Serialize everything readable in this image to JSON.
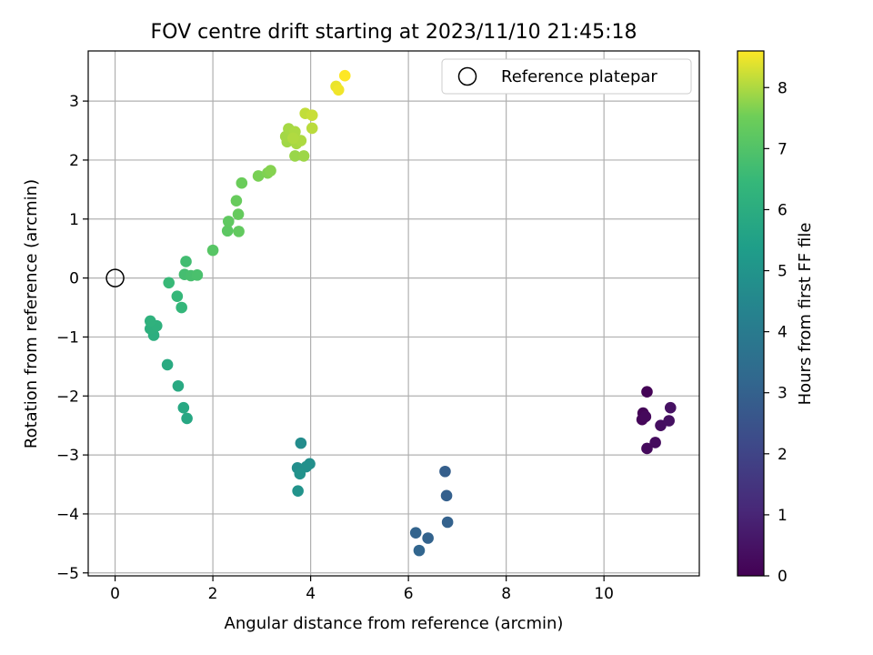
{
  "chart_data": {
    "type": "scatter",
    "title": "FOV centre drift starting at 2023/11/10 21:45:18",
    "xlabel": "Angular distance from reference (arcmin)",
    "ylabel": "Rotation from reference (arcmin)",
    "xlim": [
      -0.55,
      11.95
    ],
    "ylim": [
      -5.05,
      3.85
    ],
    "xticks": [
      0,
      2,
      4,
      6,
      8,
      10
    ],
    "yticks": [
      -5,
      -4,
      -3,
      -2,
      -1,
      0,
      1,
      2,
      3
    ],
    "grid": true,
    "legend": {
      "position": "top-right",
      "entries": [
        {
          "label": "Reference platepar",
          "marker": "open-circle"
        }
      ]
    },
    "reference_point": {
      "x": 0,
      "y": 0
    },
    "colorbar": {
      "label": "Hours from first FF file",
      "colormap": "viridis",
      "range": [
        0,
        8.6
      ],
      "ticks": [
        0,
        1,
        2,
        3,
        4,
        5,
        6,
        7,
        8
      ]
    },
    "points": [
      {
        "x": 10.88,
        "y": -1.93,
        "hours": 0.05
      },
      {
        "x": 10.8,
        "y": -2.29,
        "hours": 0.1
      },
      {
        "x": 10.78,
        "y": -2.4,
        "hours": 0.15
      },
      {
        "x": 10.85,
        "y": -2.35,
        "hours": 0.2
      },
      {
        "x": 10.88,
        "y": -2.89,
        "hours": 0.25
      },
      {
        "x": 11.05,
        "y": -2.79,
        "hours": 0.3
      },
      {
        "x": 11.16,
        "y": -2.5,
        "hours": 0.35
      },
      {
        "x": 11.33,
        "y": -2.42,
        "hours": 0.4
      },
      {
        "x": 11.36,
        "y": -2.2,
        "hours": 0.45
      },
      {
        "x": 6.75,
        "y": -3.28,
        "hours": 2.9
      },
      {
        "x": 6.78,
        "y": -3.69,
        "hours": 2.95
      },
      {
        "x": 6.8,
        "y": -4.14,
        "hours": 3.0
      },
      {
        "x": 6.4,
        "y": -4.41,
        "hours": 3.05
      },
      {
        "x": 6.15,
        "y": -4.32,
        "hours": 3.1
      },
      {
        "x": 6.22,
        "y": -4.62,
        "hours": 3.15
      },
      {
        "x": 3.8,
        "y": -2.8,
        "hours": 4.7
      },
      {
        "x": 3.73,
        "y": -3.22,
        "hours": 4.75
      },
      {
        "x": 3.98,
        "y": -3.15,
        "hours": 4.8
      },
      {
        "x": 3.91,
        "y": -3.2,
        "hours": 4.85
      },
      {
        "x": 3.78,
        "y": -3.32,
        "hours": 4.9
      },
      {
        "x": 3.74,
        "y": -3.61,
        "hours": 4.95
      },
      {
        "x": 1.47,
        "y": -2.38,
        "hours": 5.75
      },
      {
        "x": 1.4,
        "y": -2.2,
        "hours": 5.8
      },
      {
        "x": 1.29,
        "y": -1.83,
        "hours": 5.85
      },
      {
        "x": 1.07,
        "y": -1.47,
        "hours": 5.9
      },
      {
        "x": 0.79,
        "y": -0.97,
        "hours": 6.05
      },
      {
        "x": 0.72,
        "y": -0.86,
        "hours": 6.1
      },
      {
        "x": 0.85,
        "y": -0.81,
        "hours": 6.15
      },
      {
        "x": 0.72,
        "y": -0.73,
        "hours": 6.2
      },
      {
        "x": 1.36,
        "y": -0.5,
        "hours": 6.4
      },
      {
        "x": 1.27,
        "y": -0.31,
        "hours": 6.45
      },
      {
        "x": 1.1,
        "y": -0.08,
        "hours": 6.5
      },
      {
        "x": 1.45,
        "y": 0.28,
        "hours": 6.7
      },
      {
        "x": 1.42,
        "y": 0.06,
        "hours": 6.75
      },
      {
        "x": 1.55,
        "y": 0.04,
        "hours": 6.8
      },
      {
        "x": 1.68,
        "y": 0.05,
        "hours": 6.85
      },
      {
        "x": 2.0,
        "y": 0.47,
        "hours": 7.1
      },
      {
        "x": 2.3,
        "y": 0.8,
        "hours": 7.2
      },
      {
        "x": 2.32,
        "y": 0.96,
        "hours": 7.25
      },
      {
        "x": 2.53,
        "y": 0.79,
        "hours": 7.3
      },
      {
        "x": 2.52,
        "y": 1.08,
        "hours": 7.35
      },
      {
        "x": 2.48,
        "y": 1.31,
        "hours": 7.4
      },
      {
        "x": 2.59,
        "y": 1.61,
        "hours": 7.45
      },
      {
        "x": 2.93,
        "y": 1.73,
        "hours": 7.6
      },
      {
        "x": 3.12,
        "y": 1.78,
        "hours": 7.65
      },
      {
        "x": 3.18,
        "y": 1.82,
        "hours": 7.7
      },
      {
        "x": 3.68,
        "y": 2.07,
        "hours": 7.85
      },
      {
        "x": 3.86,
        "y": 2.07,
        "hours": 7.88
      },
      {
        "x": 3.52,
        "y": 2.31,
        "hours": 7.9
      },
      {
        "x": 3.49,
        "y": 2.4,
        "hours": 7.92
      },
      {
        "x": 3.55,
        "y": 2.53,
        "hours": 7.94
      },
      {
        "x": 3.71,
        "y": 2.28,
        "hours": 7.96
      },
      {
        "x": 3.68,
        "y": 2.48,
        "hours": 7.98
      },
      {
        "x": 3.8,
        "y": 2.33,
        "hours": 8.0
      },
      {
        "x": 3.64,
        "y": 2.37,
        "hours": 8.02
      },
      {
        "x": 4.03,
        "y": 2.54,
        "hours": 8.1
      },
      {
        "x": 3.89,
        "y": 2.79,
        "hours": 8.15
      },
      {
        "x": 4.03,
        "y": 2.76,
        "hours": 8.2
      },
      {
        "x": 4.52,
        "y": 3.25,
        "hours": 8.45
      },
      {
        "x": 4.57,
        "y": 3.19,
        "hours": 8.5
      },
      {
        "x": 4.7,
        "y": 3.43,
        "hours": 8.6
      }
    ]
  }
}
